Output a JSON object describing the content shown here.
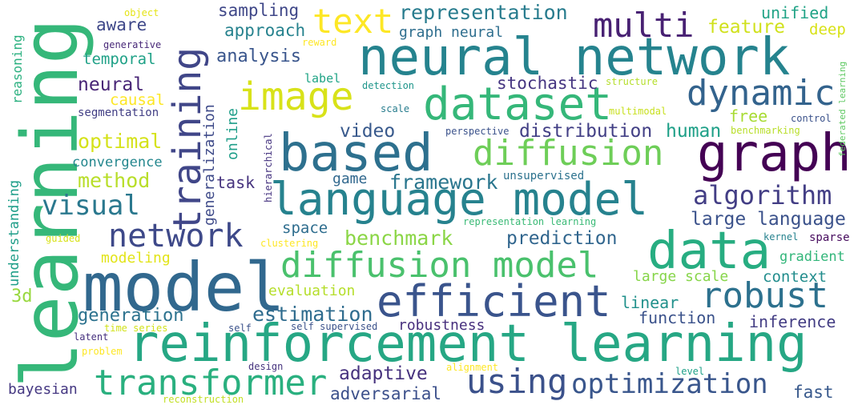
{
  "cloud": {
    "words": [
      {
        "text": "learning",
        "color": "#35b779"
      },
      {
        "text": "model",
        "color": "#31688e"
      },
      {
        "text": "reinforcement learning",
        "color": "#26a784"
      },
      {
        "text": "neural network",
        "color": "#25838e"
      },
      {
        "text": "based",
        "color": "#2d708e"
      },
      {
        "text": "language model",
        "color": "#26828e"
      },
      {
        "text": "data",
        "color": "#27ad81"
      },
      {
        "text": "efficient",
        "color": "#3a548c"
      },
      {
        "text": "graph",
        "color": "#440154"
      },
      {
        "text": "dataset",
        "color": "#35b779"
      },
      {
        "text": "diffusion model",
        "color": "#4ac16d"
      },
      {
        "text": "training",
        "color": "#404688"
      },
      {
        "text": "image",
        "color": "#d8e219"
      },
      {
        "text": "diffusion",
        "color": "#6ece58"
      },
      {
        "text": "transformer",
        "color": "#2ab07f"
      },
      {
        "text": "robust",
        "color": "#2d718e"
      },
      {
        "text": "dynamic",
        "color": "#33638d"
      },
      {
        "text": "text",
        "color": "#fde725"
      },
      {
        "text": "network",
        "color": "#3e4989"
      },
      {
        "text": "multi",
        "color": "#482173"
      },
      {
        "text": "using",
        "color": "#3b518b"
      },
      {
        "text": "optimization",
        "color": "#39568c"
      },
      {
        "text": "algorithm",
        "color": "#433e85"
      },
      {
        "text": "visual",
        "color": "#2a788e"
      },
      {
        "text": "representation",
        "color": "#287c8e"
      },
      {
        "text": "generation",
        "color": "#2c728e"
      },
      {
        "text": "estimation",
        "color": "#2f6c8e"
      },
      {
        "text": "benchmark",
        "color": "#8bd646"
      },
      {
        "text": "large language",
        "color": "#3b528b"
      },
      {
        "text": "adaptive",
        "color": "#46327e"
      },
      {
        "text": "adversarial",
        "color": "#3c508b"
      },
      {
        "text": "framework",
        "color": "#2a768e"
      },
      {
        "text": "prediction",
        "color": "#31668e"
      },
      {
        "text": "optimal",
        "color": "#d5e21a"
      },
      {
        "text": "method",
        "color": "#b8de29"
      },
      {
        "text": "video",
        "color": "#38598c"
      },
      {
        "text": "distribution",
        "color": "#423f85"
      },
      {
        "text": "human",
        "color": "#1fa088"
      },
      {
        "text": "approach",
        "color": "#26828e"
      },
      {
        "text": "analysis",
        "color": "#39558c"
      },
      {
        "text": "sampling",
        "color": "#3f4788"
      },
      {
        "text": "feature",
        "color": "#d0e11c"
      },
      {
        "text": "unified",
        "color": "#20a386"
      },
      {
        "text": "stochastic",
        "color": "#453581"
      },
      {
        "text": "neural",
        "color": "#482576"
      },
      {
        "text": "temporal",
        "color": "#1fa187"
      },
      {
        "text": "aware",
        "color": "#3f4889"
      },
      {
        "text": "causal",
        "color": "#fde725"
      },
      {
        "text": "convergence",
        "color": "#24878e"
      },
      {
        "text": "task",
        "color": "#46337e"
      },
      {
        "text": "game",
        "color": "#31688e"
      },
      {
        "text": "space",
        "color": "#2e6d8e"
      },
      {
        "text": "large scale",
        "color": "#86d549"
      },
      {
        "text": "context",
        "color": "#228d8d"
      },
      {
        "text": "linear",
        "color": "#21918c"
      },
      {
        "text": "function",
        "color": "#3b528b"
      },
      {
        "text": "inference",
        "color": "#433d84"
      },
      {
        "text": "robustness",
        "color": "#472f7d"
      },
      {
        "text": "evaluation",
        "color": "#b5de2b"
      },
      {
        "text": "modeling",
        "color": "#e2e418"
      },
      {
        "text": "bayesian",
        "color": "#453882"
      },
      {
        "text": "fast",
        "color": "#38598c"
      },
      {
        "text": "graph neural",
        "color": "#2e6e8e"
      },
      {
        "text": "deep",
        "color": "#d8e219"
      },
      {
        "text": "gradient",
        "color": "#32b67a"
      },
      {
        "text": "sparse",
        "color": "#460a5d"
      },
      {
        "text": "free",
        "color": "#a8db34"
      },
      {
        "text": "3d",
        "color": "#98d83e"
      },
      {
        "text": "generalization",
        "color": "#3e4a89"
      },
      {
        "text": "online",
        "color": "#1f9e89"
      },
      {
        "text": "understanding",
        "color": "#1f9e89"
      },
      {
        "text": "reasoning",
        "color": "#2ab07f"
      },
      {
        "text": "segmentation",
        "color": "#423f85"
      },
      {
        "text": "generative",
        "color": "#482878"
      },
      {
        "text": "object",
        "color": "#e5e419"
      },
      {
        "text": "reward",
        "color": "#fde725"
      },
      {
        "text": "label",
        "color": "#20a486"
      },
      {
        "text": "detection",
        "color": "#1f968b"
      },
      {
        "text": "scale",
        "color": "#287d8e"
      },
      {
        "text": "structure",
        "color": "#b5de2b"
      },
      {
        "text": "federated learning",
        "color": "#5ec962"
      },
      {
        "text": "multimodal",
        "color": "#c8e020"
      },
      {
        "text": "control",
        "color": "#3b528b"
      },
      {
        "text": "benchmarking",
        "color": "#b8de29"
      },
      {
        "text": "perspective",
        "color": "#3b528b"
      },
      {
        "text": "hierarchical",
        "color": "#463480"
      },
      {
        "text": "unsupervised",
        "color": "#2c728e"
      },
      {
        "text": "representation learning",
        "color": "#3aba76"
      },
      {
        "text": "kernel",
        "color": "#26828e"
      },
      {
        "text": "clustering",
        "color": "#fde725"
      },
      {
        "text": "guided",
        "color": "#d8e219"
      },
      {
        "text": "time series",
        "color": "#d2e21b"
      },
      {
        "text": "self",
        "color": "#3b528b"
      },
      {
        "text": "self supervised",
        "color": "#3b528b"
      },
      {
        "text": "latent",
        "color": "#46307e"
      },
      {
        "text": "problem",
        "color": "#fde725"
      },
      {
        "text": "design",
        "color": "#46337e"
      },
      {
        "text": "alignment",
        "color": "#fde725"
      },
      {
        "text": "level",
        "color": "#1fa088"
      },
      {
        "text": "reconstruction",
        "color": "#c2df23"
      }
    ]
  }
}
